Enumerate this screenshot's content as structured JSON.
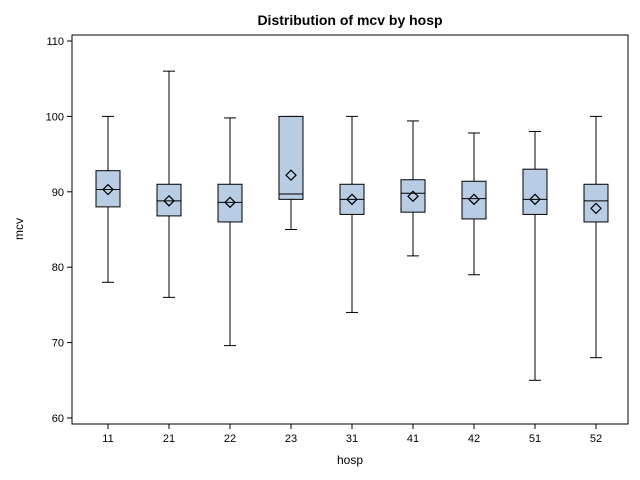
{
  "colors": {
    "box_fill": "#b8cce4",
    "stroke": "#000000",
    "background": "#ffffff"
  },
  "chart_data": {
    "type": "box",
    "title": "Distribution of mcv by hosp",
    "xlabel": "hosp",
    "ylabel": "mcv",
    "ylim": [
      60,
      110
    ],
    "yticks": [
      60,
      70,
      80,
      90,
      100,
      110
    ],
    "grid": false,
    "legend": "none",
    "categories": [
      "11",
      "21",
      "22",
      "23",
      "31",
      "41",
      "42",
      "51",
      "52"
    ],
    "boxes": [
      {
        "min": 78,
        "q1": 88,
        "median": 90.3,
        "q3": 92.8,
        "max": 100,
        "mean": 90.3
      },
      {
        "min": 76,
        "q1": 86.8,
        "median": 88.8,
        "q3": 91,
        "max": 106,
        "mean": 88.8
      },
      {
        "min": 69.6,
        "q1": 86,
        "median": 88.6,
        "q3": 91,
        "max": 99.8,
        "mean": 88.6
      },
      {
        "min": 85,
        "q1": 89,
        "median": 89.7,
        "q3": 100,
        "max": 100,
        "mean": 92.2
      },
      {
        "min": 74,
        "q1": 87,
        "median": 89,
        "q3": 91,
        "max": 100,
        "mean": 89
      },
      {
        "min": 81.5,
        "q1": 87.3,
        "median": 89.8,
        "q3": 91.6,
        "max": 99.4,
        "mean": 89.4
      },
      {
        "min": 79,
        "q1": 86.4,
        "median": 89.1,
        "q3": 91.4,
        "max": 97.8,
        "mean": 89
      },
      {
        "min": 65,
        "q1": 87,
        "median": 89,
        "q3": 93,
        "max": 98,
        "mean": 89
      },
      {
        "min": 68,
        "q1": 86,
        "median": 88.8,
        "q3": 91,
        "max": 100,
        "mean": 87.8
      }
    ]
  }
}
